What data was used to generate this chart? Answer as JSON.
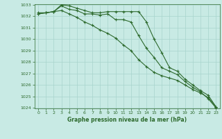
{
  "x": [
    0,
    1,
    2,
    3,
    4,
    5,
    6,
    7,
    8,
    9,
    10,
    11,
    12,
    13,
    14,
    15,
    16,
    17,
    18,
    19,
    20,
    21,
    22,
    23
  ],
  "line1": [
    1032.2,
    1032.3,
    1032.4,
    1032.9,
    1032.6,
    1032.5,
    1032.2,
    1032.2,
    1032.1,
    1032.2,
    1031.7,
    1031.7,
    1031.5,
    1030.3,
    1029.2,
    1028.4,
    1027.5,
    1027.2,
    1026.9,
    1026.3,
    1025.8,
    1025.4,
    1024.8,
    1024.0
  ],
  "line2": [
    1032.2,
    1032.3,
    1032.4,
    1033.0,
    1032.9,
    1032.7,
    1032.5,
    1032.3,
    1032.3,
    1032.4,
    1032.4,
    1032.4,
    1032.4,
    1032.4,
    1031.5,
    1030.0,
    1028.8,
    1027.5,
    1027.2,
    1026.5,
    1026.0,
    1025.5,
    1025.1,
    1024.1
  ],
  "line3": [
    1032.3,
    1032.3,
    1032.4,
    1032.5,
    1032.2,
    1031.9,
    1031.5,
    1031.2,
    1030.8,
    1030.5,
    1030.1,
    1029.5,
    1029.0,
    1028.2,
    1027.6,
    1027.1,
    1026.8,
    1026.6,
    1026.4,
    1026.0,
    1025.6,
    1025.3,
    1024.9,
    1024.1
  ],
  "ylim": [
    1024,
    1033
  ],
  "yticks": [
    1024,
    1025,
    1026,
    1027,
    1028,
    1029,
    1030,
    1031,
    1032,
    1033
  ],
  "xlim": [
    -0.5,
    23.5
  ],
  "xticks": [
    0,
    1,
    2,
    3,
    4,
    5,
    6,
    7,
    8,
    9,
    10,
    11,
    12,
    13,
    14,
    15,
    16,
    17,
    18,
    19,
    20,
    21,
    22,
    23
  ],
  "xlabel": "Graphe pression niveau de la mer (hPa)",
  "line_color": "#2d6a2d",
  "bg_color": "#c8eae4",
  "grid_color": "#a8d4cc",
  "marker": "+",
  "marker_size": 3,
  "marker_edge_width": 0.8,
  "line_width": 0.8,
  "tick_fontsize": 4.5,
  "xlabel_fontsize": 5.5
}
